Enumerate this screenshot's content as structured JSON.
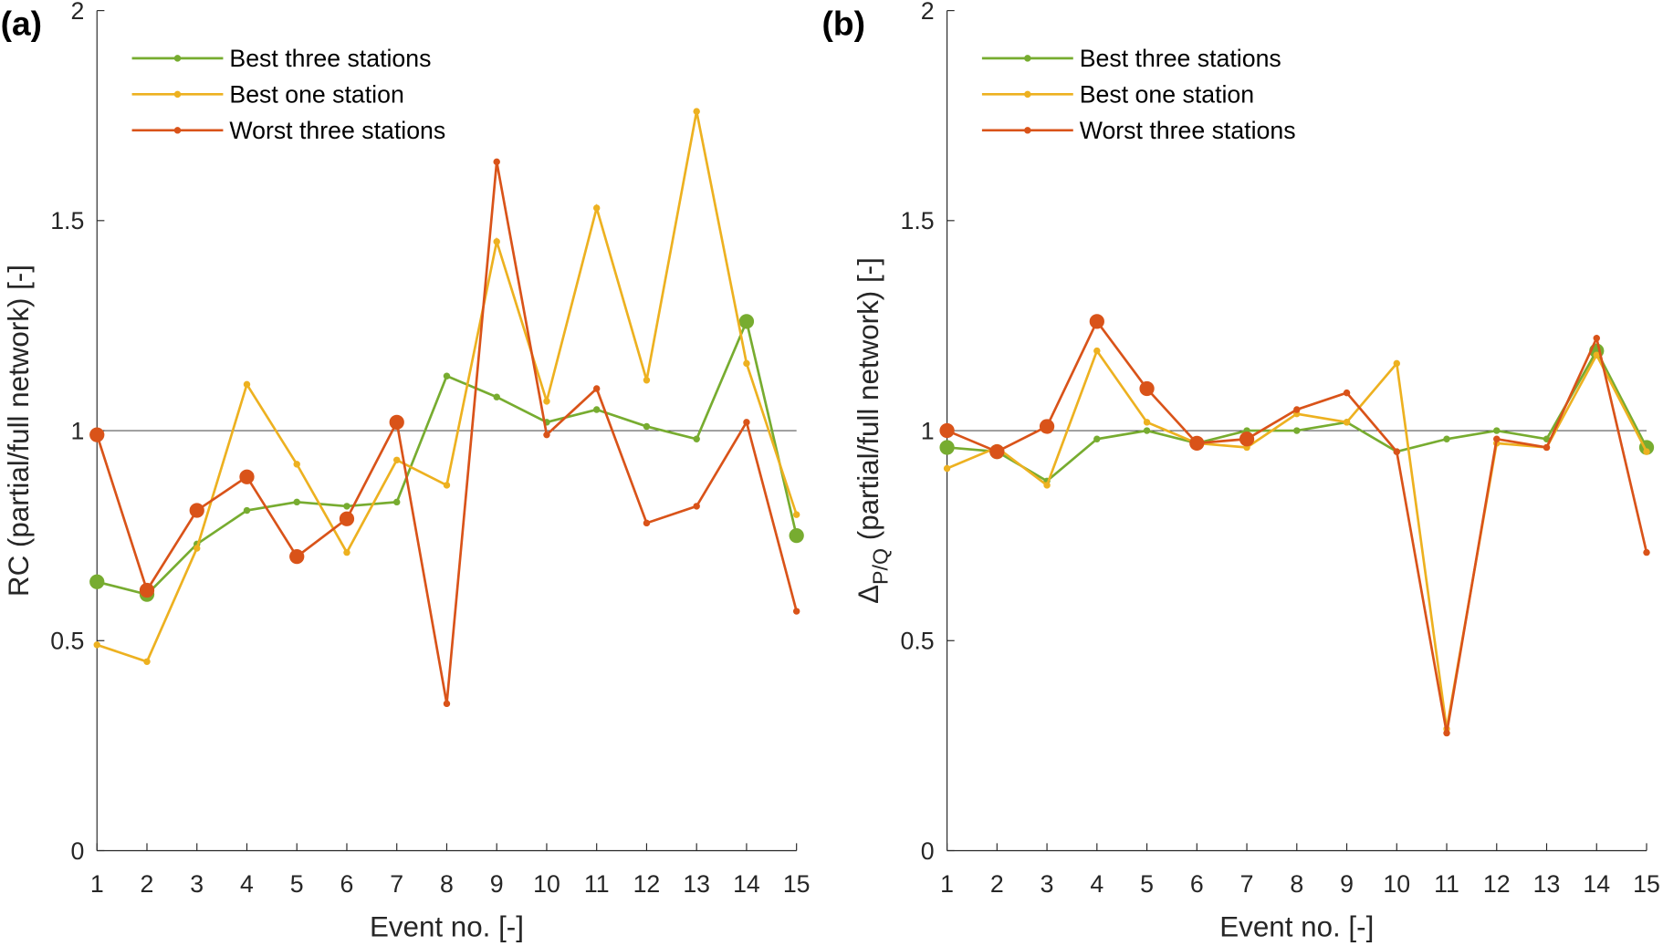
{
  "chart_data": [
    {
      "type": "line",
      "panel_label": "(a)",
      "xlabel": "Event no. [-]",
      "ylabel": "RC (partial/full network) [-]",
      "ylabel_parts": [],
      "x": [
        1,
        2,
        3,
        4,
        5,
        6,
        7,
        8,
        9,
        10,
        11,
        12,
        13,
        14,
        15
      ],
      "xticks": [
        "1",
        "2",
        "3",
        "4",
        "5",
        "6",
        "7",
        "8",
        "9",
        "10",
        "11",
        "12",
        "13",
        "14",
        "15"
      ],
      "ylim": [
        0,
        2
      ],
      "yticks": [
        "0",
        "0.5",
        "1",
        "1.5",
        "2"
      ],
      "reference_line": 1,
      "legend_position": "top-left",
      "series": [
        {
          "name": "Best three stations",
          "color": "#77AC30",
          "values": [
            0.64,
            0.61,
            0.73,
            0.81,
            0.83,
            0.82,
            0.83,
            1.13,
            1.08,
            1.02,
            1.05,
            1.01,
            0.98,
            1.26,
            0.75
          ],
          "big": [
            1,
            2,
            14,
            15
          ]
        },
        {
          "name": "Best one station",
          "color": "#EDB120",
          "values": [
            0.49,
            0.45,
            0.72,
            1.11,
            0.92,
            0.71,
            0.93,
            0.87,
            1.45,
            1.07,
            1.53,
            1.12,
            1.76,
            1.16,
            0.8
          ],
          "big": []
        },
        {
          "name": "Worst three stations",
          "color": "#D95319",
          "values": [
            0.99,
            0.62,
            0.81,
            0.89,
            0.7,
            0.79,
            1.02,
            0.35,
            1.64,
            0.99,
            1.1,
            0.78,
            0.82,
            1.02,
            0.57
          ],
          "big": [
            1,
            2,
            3,
            4,
            5,
            6,
            7
          ]
        }
      ]
    },
    {
      "type": "line",
      "panel_label": "(b)",
      "xlabel": "Event no. [-]",
      "ylabel": "",
      "ylabel_parts": [
        "Δ",
        "P/Q",
        " (partial/full network) [-]"
      ],
      "x": [
        1,
        2,
        3,
        4,
        5,
        6,
        7,
        8,
        9,
        10,
        11,
        12,
        13,
        14,
        15
      ],
      "xticks": [
        "1",
        "2",
        "3",
        "4",
        "5",
        "6",
        "7",
        "8",
        "9",
        "10",
        "11",
        "12",
        "13",
        "14",
        "15"
      ],
      "ylim": [
        0,
        2
      ],
      "yticks": [
        "0",
        "0.5",
        "1",
        "1.5",
        "2"
      ],
      "reference_line": 1,
      "legend_position": "top-left",
      "series": [
        {
          "name": "Best three stations",
          "color": "#77AC30",
          "values": [
            0.96,
            0.95,
            0.88,
            0.98,
            1.0,
            0.97,
            1.0,
            1.0,
            1.02,
            0.95,
            0.98,
            1.0,
            0.98,
            1.19,
            0.96
          ],
          "big": [
            1,
            2,
            14,
            15
          ]
        },
        {
          "name": "Best one station",
          "color": "#EDB120",
          "values": [
            0.91,
            0.96,
            0.87,
            1.19,
            1.02,
            0.97,
            0.96,
            1.04,
            1.02,
            1.16,
            0.29,
            0.97,
            0.96,
            1.18,
            0.95
          ],
          "big": []
        },
        {
          "name": "Worst three stations",
          "color": "#D95319",
          "values": [
            1.0,
            0.95,
            1.01,
            1.26,
            1.1,
            0.97,
            0.98,
            1.05,
            1.09,
            0.95,
            0.28,
            0.98,
            0.96,
            1.22,
            0.71
          ],
          "big": [
            1,
            2,
            3,
            4,
            5,
            6,
            7
          ]
        }
      ]
    }
  ]
}
